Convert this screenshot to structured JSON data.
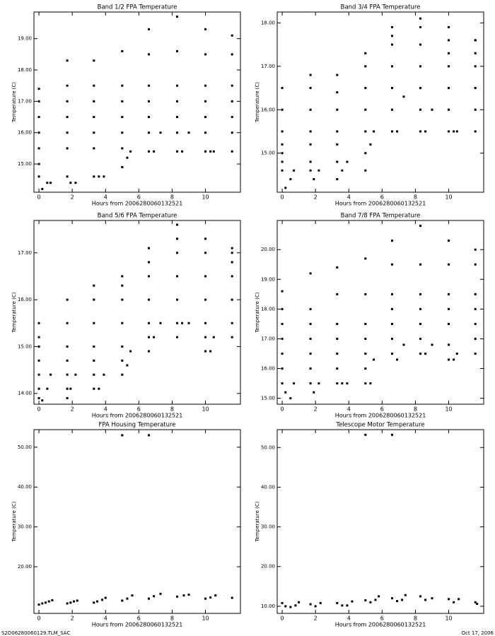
{
  "chart_data": [
    {
      "type": "scatter",
      "title": "Band 1/2 FPA Temperature",
      "xlabel": "Hours from 2006280060132521",
      "ylabel": "Temperature (C)",
      "color": "#000000",
      "xlim": [
        -0.3,
        12.1
      ],
      "xticks": [
        0,
        2,
        4,
        6,
        8,
        10
      ],
      "ylim": [
        14.1,
        19.85
      ],
      "yticks": [
        {
          "value": 15,
          "label": "15.00"
        },
        {
          "value": 16,
          "label": "16.00"
        },
        {
          "value": 17,
          "label": "17.00"
        },
        {
          "value": 18,
          "label": "18.00"
        },
        {
          "value": 19,
          "label": "19.00"
        }
      ],
      "x": [
        0,
        0,
        0,
        0,
        0,
        0,
        0,
        0.2,
        0.5,
        0.7,
        1.7,
        1.7,
        1.7,
        1.7,
        1.7,
        1.7,
        1.7,
        1.9,
        2.2,
        3.3,
        3.3,
        3.3,
        3.3,
        3.3,
        3.3,
        3.3,
        3.6,
        3.9,
        5,
        5,
        5,
        5,
        5,
        5,
        5,
        5.3,
        5.5,
        6.6,
        6.6,
        6.6,
        6.6,
        6.6,
        6.6,
        6.6,
        6.9,
        7.3,
        8.3,
        8.3,
        8.3,
        8.3,
        8.3,
        8.3,
        8.3,
        8.6,
        9.0,
        10,
        10,
        10,
        10,
        10,
        10,
        10,
        10.3,
        10.5,
        11.6,
        11.6,
        11.6,
        11.6,
        11.6,
        11.6,
        11.6
      ],
      "values": [
        14.6,
        15.0,
        15.5,
        16.0,
        16.5,
        17.0,
        17.4,
        14.2,
        14.4,
        14.4,
        14.6,
        15.5,
        16.0,
        16.5,
        17.0,
        17.5,
        18.3,
        14.4,
        14.4,
        14.6,
        15.5,
        16.0,
        16.5,
        17.0,
        17.5,
        18.3,
        14.6,
        14.6,
        14.9,
        15.5,
        16.0,
        16.5,
        17.0,
        17.5,
        18.6,
        15.2,
        15.4,
        15.4,
        16.0,
        16.5,
        17.0,
        17.5,
        18.5,
        19.3,
        15.4,
        16.0,
        15.4,
        16.0,
        16.5,
        17.0,
        17.5,
        18.6,
        19.7,
        15.4,
        16.0,
        15.4,
        16.0,
        16.5,
        17.0,
        17.5,
        18.5,
        19.3,
        15.4,
        15.4,
        15.4,
        16.0,
        16.5,
        17.0,
        17.5,
        18.5,
        19.1
      ]
    },
    {
      "type": "scatter",
      "title": "Band 3/4 FPA Temperature",
      "xlabel": "Hours from 2006280060132521",
      "ylabel": "Temperature (C)",
      "color": "#000000",
      "xlim": [
        -0.3,
        12.1
      ],
      "xticks": [
        0,
        2,
        4,
        6,
        8,
        10
      ],
      "ylim": [
        14.1,
        18.25
      ],
      "yticks": [
        {
          "value": 15,
          "label": "15.00"
        },
        {
          "value": 16,
          "label": "16.00"
        },
        {
          "value": 17,
          "label": "17.00"
        },
        {
          "value": 18,
          "label": "18.00"
        }
      ],
      "x": [
        0,
        0,
        0,
        0,
        0,
        0,
        0,
        0.2,
        0.5,
        0.7,
        1.7,
        1.7,
        1.7,
        1.7,
        1.7,
        1.7,
        1.7,
        1.9,
        2.2,
        3.3,
        3.3,
        3.3,
        3.3,
        3.3,
        3.3,
        3.3,
        3.6,
        3.9,
        5,
        5,
        5,
        5,
        5,
        5,
        5,
        5.3,
        5.5,
        6.6,
        6.6,
        6.6,
        6.6,
        6.6,
        6.6,
        6.6,
        6.9,
        7.3,
        8.3,
        8.3,
        8.3,
        8.3,
        8.3,
        8.3,
        8.3,
        8.6,
        9.0,
        10,
        10,
        10,
        10,
        10,
        10,
        10,
        10.3,
        10.5,
        11.6,
        11.6,
        11.6,
        11.6,
        11.6,
        11.6,
        11.6
      ],
      "values": [
        14.6,
        14.8,
        15.0,
        15.2,
        15.5,
        16.0,
        16.5,
        14.2,
        14.4,
        14.6,
        14.6,
        14.8,
        15.2,
        15.5,
        16.0,
        16.5,
        16.8,
        14.4,
        14.6,
        14.4,
        14.8,
        15.2,
        15.5,
        16.0,
        16.4,
        16.8,
        14.6,
        14.8,
        14.6,
        15.0,
        15.5,
        16.0,
        16.5,
        17.0,
        17.3,
        15.2,
        15.5,
        15.5,
        16.0,
        16.5,
        17.0,
        17.5,
        17.7,
        17.9,
        15.5,
        16.3,
        15.5,
        16.0,
        16.5,
        17.0,
        17.5,
        17.9,
        18.1,
        15.5,
        16.0,
        15.5,
        16.0,
        16.5,
        17.0,
        17.3,
        17.6,
        17.9,
        15.5,
        15.5,
        15.5,
        16.0,
        16.5,
        17.0,
        17.3,
        17.6,
        17.6
      ]
    },
    {
      "type": "scatter",
      "title": "Band 5/6 FPA Temperature",
      "xlabel": "Hours from 2006280060132521",
      "ylabel": "Temperature (C)",
      "color": "#000000",
      "xlim": [
        -0.3,
        12.1
      ],
      "xticks": [
        0,
        2,
        4,
        6,
        8,
        10
      ],
      "ylim": [
        13.77,
        17.69
      ],
      "yticks": [
        {
          "value": 14,
          "label": "14.00"
        },
        {
          "value": 15,
          "label": "15.00"
        },
        {
          "value": 16,
          "label": "16.00"
        },
        {
          "value": 17,
          "label": "17.00"
        }
      ],
      "x": [
        0,
        0,
        0,
        0,
        0,
        0,
        0,
        0.2,
        0.5,
        0.7,
        1.7,
        1.7,
        1.7,
        1.7,
        1.7,
        1.7,
        1.7,
        1.9,
        2.2,
        3.3,
        3.3,
        3.3,
        3.3,
        3.3,
        3.3,
        3.3,
        3.6,
        3.9,
        5,
        5,
        5,
        5,
        5,
        5,
        5,
        5.3,
        5.5,
        6.6,
        6.6,
        6.6,
        6.6,
        6.6,
        6.6,
        6.6,
        6.9,
        7.3,
        8.3,
        8.3,
        8.3,
        8.3,
        8.3,
        8.3,
        8.3,
        8.6,
        9.0,
        10,
        10,
        10,
        10,
        10,
        10,
        10,
        10.3,
        10.5,
        11.6,
        11.6,
        11.6,
        11.6,
        11.6,
        11.6,
        11.6
      ],
      "values": [
        13.9,
        14.1,
        14.4,
        14.7,
        15.0,
        15.2,
        15.5,
        13.85,
        14.1,
        14.4,
        13.9,
        14.1,
        14.4,
        14.7,
        15.0,
        15.5,
        16.0,
        14.1,
        14.4,
        14.1,
        14.4,
        14.7,
        15.0,
        15.5,
        16.0,
        16.3,
        14.1,
        14.4,
        14.4,
        14.7,
        15.0,
        15.5,
        16.0,
        16.3,
        16.5,
        14.6,
        14.9,
        14.9,
        15.2,
        15.5,
        16.0,
        16.5,
        16.8,
        17.1,
        15.2,
        15.5,
        15.2,
        15.5,
        16.0,
        16.5,
        17.0,
        17.3,
        17.6,
        15.5,
        15.5,
        14.9,
        15.2,
        15.5,
        16.0,
        16.5,
        17.0,
        17.3,
        14.9,
        15.2,
        15.2,
        15.5,
        16.0,
        16.5,
        16.8,
        17.0,
        17.1
      ]
    },
    {
      "type": "scatter",
      "title": "Band 7/8 FPA Temperature",
      "xlabel": "Hours from 2006280060132521",
      "ylabel": "Temperature (C)",
      "color": "#000000",
      "xlim": [
        -0.3,
        12.1
      ],
      "xticks": [
        0,
        2,
        4,
        6,
        8,
        10
      ],
      "ylim": [
        14.8,
        20.98
      ],
      "yticks": [
        {
          "value": 15,
          "label": "15.00"
        },
        {
          "value": 16,
          "label": "16.00"
        },
        {
          "value": 17,
          "label": "17.00"
        },
        {
          "value": 18,
          "label": "18.00"
        },
        {
          "value": 19,
          "label": "19.00"
        },
        {
          "value": 20,
          "label": "20.00"
        }
      ],
      "x": [
        0,
        0,
        0,
        0,
        0,
        0,
        0,
        0.2,
        0.5,
        0.7,
        1.7,
        1.7,
        1.7,
        1.7,
        1.7,
        1.7,
        1.7,
        1.9,
        2.2,
        3.3,
        3.3,
        3.3,
        3.3,
        3.3,
        3.3,
        3.3,
        3.6,
        3.9,
        5,
        5,
        5,
        5,
        5,
        5,
        5,
        5.3,
        5.5,
        6.6,
        6.6,
        6.6,
        6.6,
        6.6,
        6.6,
        6.6,
        6.9,
        7.3,
        8.3,
        8.3,
        8.3,
        8.3,
        8.3,
        8.3,
        8.3,
        8.6,
        9.0,
        10,
        10,
        10,
        10,
        10,
        10,
        10,
        10.3,
        10.5,
        11.6,
        11.6,
        11.6,
        11.6,
        11.6,
        11.6,
        11.6
      ],
      "values": [
        15.5,
        16.0,
        16.5,
        17.0,
        17.5,
        18.0,
        18.6,
        15.2,
        15.0,
        15.5,
        15.5,
        16.0,
        16.5,
        17.0,
        17.5,
        18.0,
        19.2,
        15.2,
        15.5,
        15.5,
        16.0,
        16.5,
        17.0,
        17.5,
        18.5,
        19.4,
        15.5,
        15.5,
        15.5,
        16.0,
        16.5,
        17.0,
        17.5,
        18.5,
        19.7,
        15.5,
        16.3,
        16.5,
        17.0,
        17.5,
        18.0,
        18.5,
        19.5,
        20.3,
        16.3,
        16.8,
        16.5,
        17.0,
        17.5,
        18.0,
        18.5,
        19.5,
        20.8,
        16.5,
        16.8,
        16.3,
        16.8,
        17.5,
        18.0,
        18.5,
        19.5,
        20.3,
        16.3,
        16.5,
        16.5,
        17.0,
        17.5,
        18.0,
        18.5,
        19.5,
        20.0
      ]
    },
    {
      "type": "scatter",
      "title": "FPA Housing Temperature",
      "xlabel": "Hours from 2006280060132521",
      "ylabel": "Temperature (C)",
      "color": "#000000",
      "xlim": [
        -0.3,
        12.1
      ],
      "xticks": [
        0,
        2,
        4,
        6,
        8,
        10
      ],
      "ylim": [
        8.3,
        54.4
      ],
      "yticks": [
        {
          "value": 20,
          "label": "20.00"
        },
        {
          "value": 30,
          "label": "30.00"
        },
        {
          "value": 40,
          "label": "40.00"
        },
        {
          "value": 50,
          "label": "50.00"
        }
      ],
      "x": [
        0,
        0.2,
        0.4,
        0.6,
        0.8,
        1.7,
        1.9,
        2.1,
        2.3,
        3.3,
        3.5,
        3.8,
        4.0,
        5.0,
        5.3,
        5.6,
        6.6,
        6.9,
        7.3,
        8.3,
        8.7,
        9.0,
        10,
        10.3,
        10.6,
        11.6,
        5.0,
        6.6
      ],
      "values": [
        10.5,
        10.8,
        11.0,
        11.3,
        11.6,
        10.8,
        11.0,
        11.3,
        11.5,
        11.0,
        11.3,
        11.7,
        12.2,
        11.5,
        12.0,
        12.8,
        12.0,
        12.6,
        13.2,
        12.5,
        12.8,
        13.0,
        12.0,
        12.3,
        12.8,
        12.2,
        53.0,
        53.0
      ]
    },
    {
      "type": "scatter",
      "title": "Telescope Motor Temperature",
      "xlabel": "Hours from 2006280060132521",
      "ylabel": "Temperature (C)",
      "color": "#000000",
      "xlim": [
        -0.3,
        12.1
      ],
      "xticks": [
        0,
        2,
        4,
        6,
        8,
        10
      ],
      "ylim": [
        8.2,
        54.5
      ],
      "yticks": [
        {
          "value": 10,
          "label": "10.00"
        },
        {
          "value": 20,
          "label": "20.00"
        },
        {
          "value": 30,
          "label": "30.00"
        },
        {
          "value": 40,
          "label": "40.00"
        },
        {
          "value": 50,
          "label": "50.00"
        }
      ],
      "x": [
        0,
        0.2,
        0.5,
        0.8,
        1.0,
        1.7,
        2.0,
        2.3,
        3.3,
        3.6,
        3.9,
        4.2,
        5.0,
        5.3,
        5.6,
        5.8,
        6.6,
        6.9,
        7.2,
        7.4,
        8.3,
        8.6,
        9.0,
        10,
        10.3,
        10.6,
        11.6,
        11.7,
        5.0,
        6.6
      ],
      "values": [
        10.8,
        10.0,
        9.8,
        10.2,
        11.0,
        10.5,
        10.0,
        10.8,
        10.8,
        10.2,
        10.2,
        11.2,
        11.5,
        11.0,
        11.6,
        12.5,
        12.0,
        11.3,
        11.6,
        12.8,
        12.5,
        11.6,
        12.0,
        11.8,
        11.0,
        11.8,
        11.0,
        10.6,
        53.2,
        53.2
      ]
    }
  ],
  "footer": {
    "left": "S2D06280060129.TLM_SAC",
    "right": "Oct 17, 2006"
  }
}
